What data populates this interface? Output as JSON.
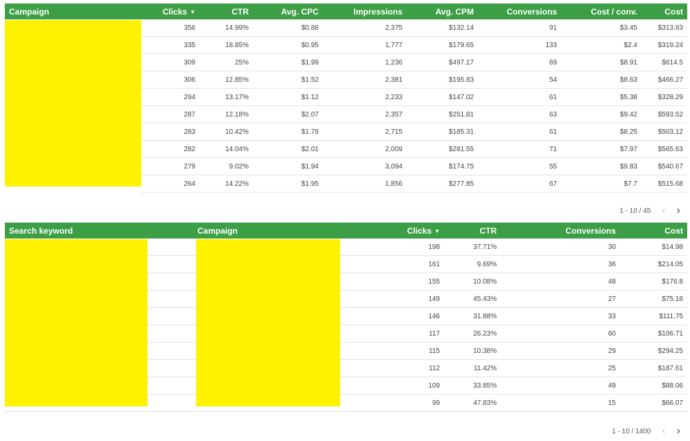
{
  "table1": {
    "headers": {
      "campaign": "Campaign",
      "clicks": "Clicks",
      "ctr": "CTR",
      "avg_cpc": "Avg. CPC",
      "impressions": "Impressions",
      "avg_cpm": "Avg. CPM",
      "conversions": "Conversions",
      "cost_conv": "Cost / conv.",
      "cost": "Cost"
    },
    "sort_icon": "sort-desc-icon",
    "rows": [
      {
        "clicks": "356",
        "ctr": "14.99%",
        "avg_cpc": "$0.88",
        "impressions": "2,375",
        "avg_cpm": "$132.14",
        "conversions": "91",
        "cost_conv": "$3.45",
        "cost": "$313.83"
      },
      {
        "clicks": "335",
        "ctr": "18.85%",
        "avg_cpc": "$0.95",
        "impressions": "1,777",
        "avg_cpm": "$179.65",
        "conversions": "133",
        "cost_conv": "$2.4",
        "cost": "$319.24"
      },
      {
        "clicks": "309",
        "ctr": "25%",
        "avg_cpc": "$1.99",
        "impressions": "1,236",
        "avg_cpm": "$497.17",
        "conversions": "69",
        "cost_conv": "$8.91",
        "cost": "$614.5"
      },
      {
        "clicks": "306",
        "ctr": "12.85%",
        "avg_cpc": "$1.52",
        "impressions": "2,381",
        "avg_cpm": "$195.83",
        "conversions": "54",
        "cost_conv": "$8.63",
        "cost": "$466.27"
      },
      {
        "clicks": "294",
        "ctr": "13.17%",
        "avg_cpc": "$1.12",
        "impressions": "2,233",
        "avg_cpm": "$147.02",
        "conversions": "61",
        "cost_conv": "$5.38",
        "cost": "$328.29"
      },
      {
        "clicks": "287",
        "ctr": "12.18%",
        "avg_cpc": "$2.07",
        "impressions": "2,357",
        "avg_cpm": "$251.81",
        "conversions": "63",
        "cost_conv": "$9.42",
        "cost": "$593.52"
      },
      {
        "clicks": "283",
        "ctr": "10.42%",
        "avg_cpc": "$1.78",
        "impressions": "2,715",
        "avg_cpm": "$185.31",
        "conversions": "61",
        "cost_conv": "$8.25",
        "cost": "$503.12"
      },
      {
        "clicks": "282",
        "ctr": "14.04%",
        "avg_cpc": "$2.01",
        "impressions": "2,009",
        "avg_cpm": "$281.55",
        "conversions": "71",
        "cost_conv": "$7.97",
        "cost": "$565.63"
      },
      {
        "clicks": "279",
        "ctr": "9.02%",
        "avg_cpc": "$1.94",
        "impressions": "3,094",
        "avg_cpm": "$174.75",
        "conversions": "55",
        "cost_conv": "$9.83",
        "cost": "$540.67"
      },
      {
        "clicks": "264",
        "ctr": "14.22%",
        "avg_cpc": "$1.95",
        "impressions": "1,856",
        "avg_cpm": "$277.85",
        "conversions": "67",
        "cost_conv": "$7.7",
        "cost": "$515.68"
      }
    ],
    "pagination": {
      "text": "1 - 10 / 45",
      "prev_icon": "chevron-left-icon",
      "next_icon": "chevron-right-icon"
    }
  },
  "table2": {
    "headers": {
      "search_keyword": "Search keyword",
      "campaign": "Campaign",
      "clicks": "Clicks",
      "ctr": "CTR",
      "conversions": "Conversions",
      "cost": "Cost"
    },
    "sort_icon": "sort-desc-icon",
    "rows": [
      {
        "clicks": "198",
        "ctr": "37.71%",
        "conversions": "30",
        "cost": "$14.98"
      },
      {
        "clicks": "161",
        "ctr": "9.69%",
        "conversions": "36",
        "cost": "$214.05"
      },
      {
        "clicks": "155",
        "ctr": "10.08%",
        "conversions": "48",
        "cost": "$176.8"
      },
      {
        "clicks": "149",
        "ctr": "45.43%",
        "conversions": "27",
        "cost": "$75.18"
      },
      {
        "clicks": "146",
        "ctr": "31.88%",
        "conversions": "33",
        "cost": "$111.75"
      },
      {
        "clicks": "117",
        "ctr": "26.23%",
        "conversions": "60",
        "cost": "$106.71"
      },
      {
        "clicks": "115",
        "ctr": "10.38%",
        "conversions": "29",
        "cost": "$294.25"
      },
      {
        "clicks": "112",
        "ctr": "11.42%",
        "conversions": "25",
        "cost": "$187.61"
      },
      {
        "clicks": "109",
        "ctr": "33.85%",
        "conversions": "49",
        "cost": "$88.06"
      },
      {
        "clicks": "99",
        "ctr": "47.83%",
        "conversions": "15",
        "cost": "$66.07"
      }
    ],
    "pagination": {
      "text": "1 - 10 / 1400",
      "prev_icon": "chevron-left-icon",
      "next_icon": "chevron-right-icon"
    }
  },
  "colors": {
    "header_green": "#3c9e45",
    "redaction_yellow": "#fff200"
  }
}
